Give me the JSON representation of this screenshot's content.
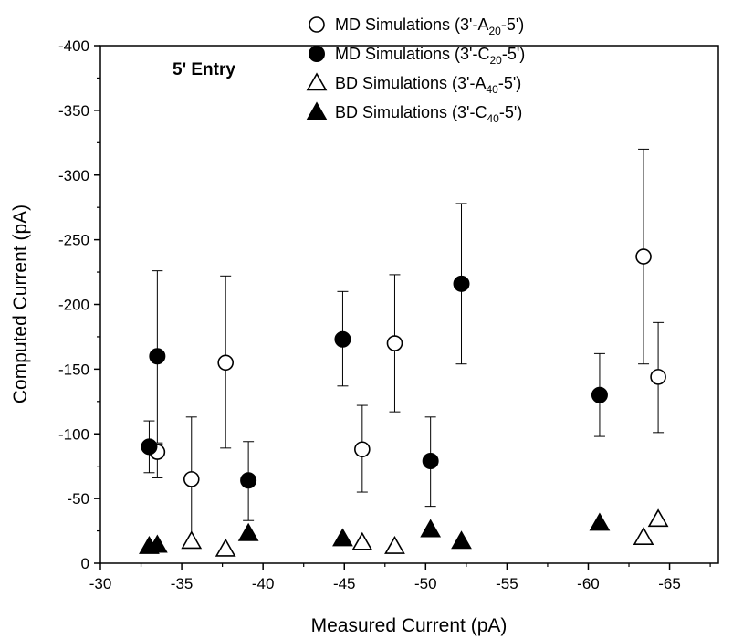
{
  "chart_data": {
    "type": "scatter",
    "annotation": "5' Entry",
    "xlabel": "Measured Current (pA)",
    "ylabel": "Computed Current (pA)",
    "xlim": [
      -30,
      -68
    ],
    "ylim": [
      0,
      -400
    ],
    "xticks": [
      "-30",
      "-35",
      "-40",
      "-45",
      "-50",
      "-55",
      "-60",
      "-65"
    ],
    "yticks": [
      "0",
      "-50",
      "-100",
      "-150",
      "-200",
      "-250",
      "-300",
      "-350",
      "-400"
    ],
    "xtick_values": [
      -30,
      -35,
      -40,
      -45,
      -50,
      -55,
      -60,
      -65
    ],
    "ytick_values": [
      0,
      -50,
      -100,
      -150,
      -200,
      -250,
      -300,
      -350,
      -400
    ],
    "legend_position": "top-right",
    "grid": false,
    "series": [
      {
        "name": "MD Simulations (3'-A20-5')",
        "legend": {
          "pre": "MD Simulations (3'-A",
          "sub": "20",
          "post": "-5')"
        },
        "marker": "circle-open",
        "points": [
          {
            "x": -33.5,
            "y": -86,
            "err_lo": -66,
            "err_hi": -92
          },
          {
            "x": -35.6,
            "y": -65,
            "err_lo": -17,
            "err_hi": -113
          },
          {
            "x": -37.7,
            "y": -155,
            "err_lo": -89,
            "err_hi": -222
          },
          {
            "x": -46.1,
            "y": -88,
            "err_lo": -55,
            "err_hi": -122
          },
          {
            "x": -48.1,
            "y": -170,
            "err_lo": -117,
            "err_hi": -223
          },
          {
            "x": -63.4,
            "y": -237,
            "err_lo": -154,
            "err_hi": -320
          },
          {
            "x": -64.3,
            "y": -144,
            "err_lo": -101,
            "err_hi": -186
          }
        ]
      },
      {
        "name": "MD Simulations (3'-C20-5')",
        "legend": {
          "pre": "MD Simulations (3'-C",
          "sub": "20",
          "post": "-5')"
        },
        "marker": "circle-filled",
        "points": [
          {
            "x": -33.0,
            "y": -90,
            "err_lo": -70,
            "err_hi": -110
          },
          {
            "x": -33.5,
            "y": -160,
            "err_lo": -93,
            "err_hi": -226
          },
          {
            "x": -39.1,
            "y": -64,
            "err_lo": -33,
            "err_hi": -94
          },
          {
            "x": -44.9,
            "y": -173,
            "err_lo": -137,
            "err_hi": -210
          },
          {
            "x": -50.3,
            "y": -79,
            "err_lo": -44,
            "err_hi": -113
          },
          {
            "x": -52.2,
            "y": -216,
            "err_lo": -154,
            "err_hi": -278
          },
          {
            "x": -60.7,
            "y": -130,
            "err_lo": -98,
            "err_hi": -162
          }
        ]
      },
      {
        "name": "BD Simulations (3'-A40-5')",
        "legend": {
          "pre": "BD Simulations (3'-A",
          "sub": "40",
          "post": "-5')"
        },
        "marker": "triangle-open",
        "points": [
          {
            "x": -35.6,
            "y": -17
          },
          {
            "x": -37.7,
            "y": -11
          },
          {
            "x": -46.1,
            "y": -16
          },
          {
            "x": -48.1,
            "y": -13
          },
          {
            "x": -63.4,
            "y": -20
          },
          {
            "x": -64.3,
            "y": -34
          }
        ]
      },
      {
        "name": "BD Simulations (3'-C40-5')",
        "legend": {
          "pre": "BD Simulations (3'-C",
          "sub": "40",
          "post": "-5')"
        },
        "marker": "triangle-filled",
        "points": [
          {
            "x": -33.0,
            "y": -13
          },
          {
            "x": -33.5,
            "y": -14
          },
          {
            "x": -39.1,
            "y": -23
          },
          {
            "x": -44.9,
            "y": -19
          },
          {
            "x": -50.3,
            "y": -26
          },
          {
            "x": -52.2,
            "y": -17
          },
          {
            "x": -60.7,
            "y": -31
          }
        ]
      }
    ]
  }
}
